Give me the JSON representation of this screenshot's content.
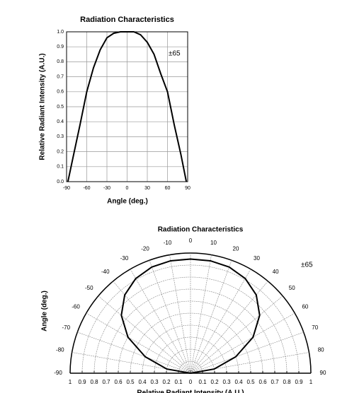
{
  "chart_data": [
    {
      "type": "line",
      "title": "Radiation Characteristics",
      "xlabel": "Angle (deg.)",
      "ylabel": "Relative Radiant Intensity (A.U.)",
      "annotation": "±65",
      "grid": true,
      "color": "#000000",
      "x": [
        -88,
        -80,
        -70,
        -60,
        -50,
        -40,
        -30,
        -20,
        -10,
        0,
        10,
        20,
        30,
        40,
        50,
        60,
        70,
        80,
        88
      ],
      "values": [
        0,
        0.17,
        0.38,
        0.6,
        0.76,
        0.88,
        0.96,
        0.99,
        1.0,
        1.0,
        1.0,
        0.98,
        0.93,
        0.85,
        0.72,
        0.6,
        0.38,
        0.18,
        0
      ],
      "xlim": [
        -90,
        90
      ],
      "ylim": [
        0,
        1
      ],
      "xticks": [
        -90,
        -60,
        -30,
        0,
        30,
        60,
        90
      ],
      "yticks": [
        {
          "value": 0,
          "label": "0.0"
        },
        0.1,
        0.2,
        0.3,
        0.4,
        0.5,
        0.6,
        0.7,
        0.8,
        0.9,
        {
          "value": 1,
          "label": "1.0"
        }
      ]
    },
    {
      "type": "polar",
      "title": "Radiation Characteristics",
      "xlabel": "Relative Radiant Intensity (A.U.)",
      "ylabel": "Angle (deg.)",
      "annotation": "±65",
      "grid": true,
      "color": "#000000",
      "theta": [
        -90,
        -80,
        -70,
        -60,
        -50,
        -40,
        -30,
        -20,
        -10,
        0,
        10,
        20,
        30,
        40,
        50,
        60,
        70,
        80,
        90
      ],
      "r": [
        0,
        0.2,
        0.4,
        0.6,
        0.75,
        0.85,
        0.91,
        0.94,
        0.95,
        0.95,
        0.95,
        0.94,
        0.91,
        0.85,
        0.75,
        0.6,
        0.4,
        0.2,
        0
      ],
      "rlim": [
        0,
        1
      ],
      "thetaticks": [
        -90,
        -80,
        -70,
        -60,
        -50,
        -40,
        -30,
        -20,
        -10,
        0,
        10,
        20,
        30,
        40,
        50,
        60,
        70,
        80,
        90
      ],
      "xticks": [
        {
          "value": -1,
          "label": "1"
        },
        {
          "value": -0.9,
          "label": "0.9"
        },
        {
          "value": -0.8,
          "label": "0.8"
        },
        {
          "value": -0.7,
          "label": "0.7"
        },
        {
          "value": -0.6,
          "label": "0.6"
        },
        {
          "value": -0.5,
          "label": "0.5"
        },
        {
          "value": -0.4,
          "label": "0.4"
        },
        {
          "value": -0.3,
          "label": "0.3"
        },
        {
          "value": -0.2,
          "label": "0.2"
        },
        {
          "value": -0.1,
          "label": "0.1"
        },
        0,
        0.1,
        0.2,
        0.3,
        0.4,
        0.5,
        0.6,
        0.7,
        0.8,
        0.9,
        1
      ]
    }
  ]
}
